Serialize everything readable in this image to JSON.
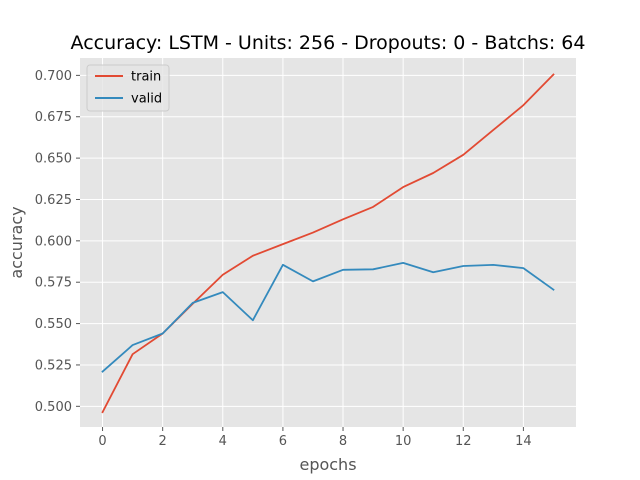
{
  "chart_data": {
    "type": "line",
    "title": "Accuracy: LSTM - Units: 256 - Dropouts: 0 - Batchs: 64",
    "xlabel": "epochs",
    "ylabel": "accuracy",
    "x": [
      0,
      1,
      2,
      3,
      4,
      5,
      6,
      7,
      8,
      9,
      10,
      11,
      12,
      13,
      14,
      15
    ],
    "xlim": [
      -0.75,
      15.75
    ],
    "ylim": [
      0.4875,
      0.7105
    ],
    "xticks": [
      0,
      2,
      4,
      6,
      8,
      10,
      12,
      14
    ],
    "xtick_labels": [
      "0",
      "2",
      "4",
      "6",
      "8",
      "10",
      "12",
      "14"
    ],
    "yticks": [
      0.5,
      0.525,
      0.55,
      0.575,
      0.6,
      0.625,
      0.65,
      0.675,
      0.7
    ],
    "ytick_labels": [
      "0.500",
      "0.525",
      "0.550",
      "0.575",
      "0.600",
      "0.625",
      "0.650",
      "0.675",
      "0.700"
    ],
    "grid": true,
    "legend_position": "top-left",
    "series": [
      {
        "name": "train",
        "color": "#E24A33",
        "values": [
          0.4965,
          0.5315,
          0.544,
          0.562,
          0.5795,
          0.591,
          0.598,
          0.605,
          0.613,
          0.6205,
          0.6325,
          0.641,
          0.652,
          0.667,
          0.682,
          0.7005
        ]
      },
      {
        "name": "valid",
        "color": "#348ABD",
        "values": [
          0.521,
          0.537,
          0.544,
          0.5625,
          0.569,
          0.552,
          0.5855,
          0.5755,
          0.5825,
          0.5828,
          0.5867,
          0.581,
          0.5848,
          0.5855,
          0.5835,
          0.5705
        ]
      }
    ]
  },
  "style": {
    "plot_background": "#E5E5E5",
    "grid_color": "#FFFFFF",
    "tick_color": "#555555"
  }
}
